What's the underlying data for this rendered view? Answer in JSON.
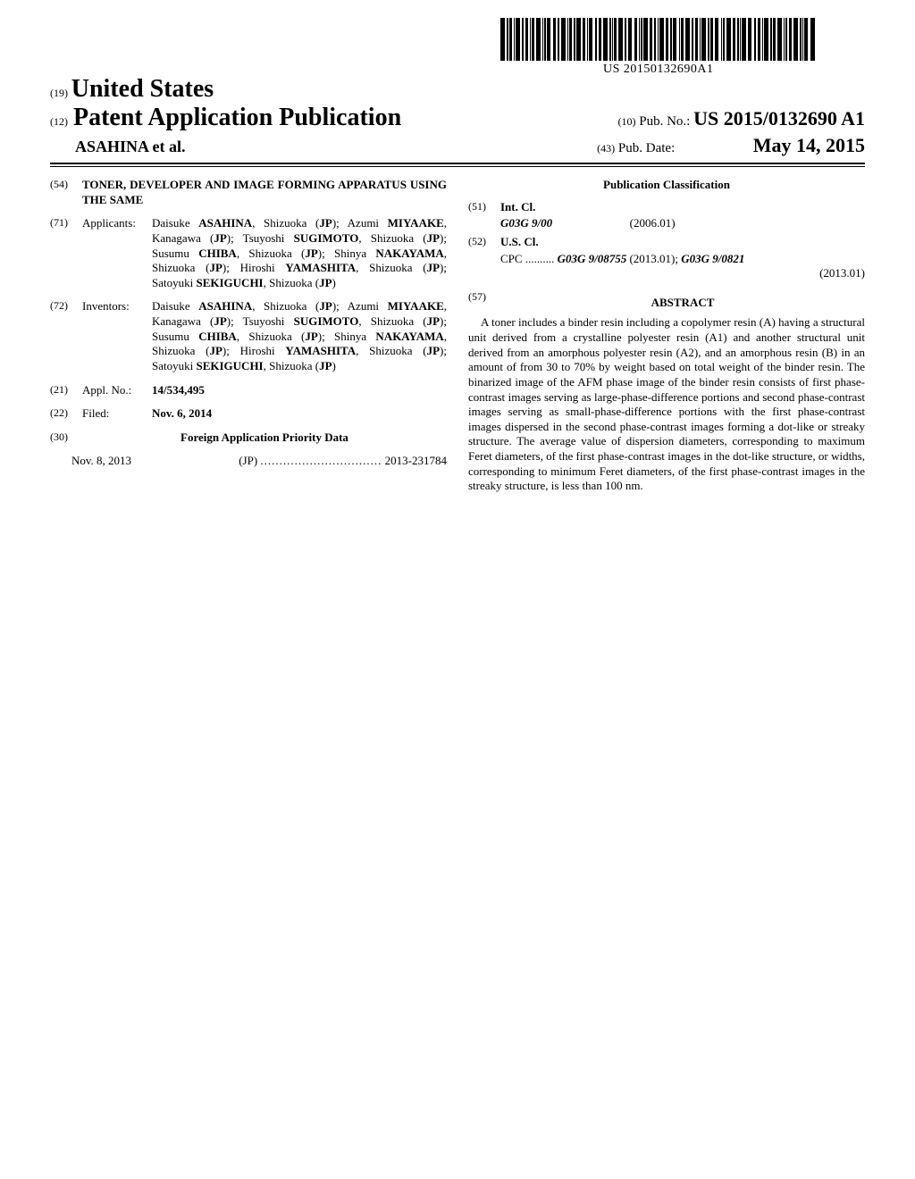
{
  "barcode_text": "US 20150132690A1",
  "header": {
    "country_tag": "(19)",
    "country": "United States",
    "pub_tag": "(12)",
    "pub_title": "Patent Application Publication",
    "pubno_tag": "(10)",
    "pubno_label": "Pub. No.:",
    "pubno_value": "US 2015/0132690 A1",
    "author": "ASAHINA et al.",
    "date_tag": "(43)",
    "date_label": "Pub. Date:",
    "date_value": "May 14, 2015"
  },
  "left": {
    "title_tag": "(54)",
    "title": "TONER, DEVELOPER AND IMAGE FORMING APPARATUS USING THE SAME",
    "applicants_tag": "(71)",
    "applicants_label": "Applicants:",
    "applicants": "Daisuke ASAHINA, Shizuoka (JP); Azumi MIYAAKE, Kanagawa (JP); Tsuyoshi SUGIMOTO, Shizuoka (JP); Susumu CHIBA, Shizuoka (JP); Shinya NAKAYAMA, Shizuoka (JP); Hiroshi YAMASHITA, Shizuoka (JP); Satoyuki SEKIGUCHI, Shizuoka (JP)",
    "inventors_tag": "(72)",
    "inventors_label": "Inventors:",
    "inventors": "Daisuke ASAHINA, Shizuoka (JP); Azumi MIYAAKE, Kanagawa (JP); Tsuyoshi SUGIMOTO, Shizuoka (JP); Susumu CHIBA, Shizuoka (JP); Shinya NAKAYAMA, Shizuoka (JP); Hiroshi YAMASHITA, Shizuoka (JP); Satoyuki SEKIGUCHI, Shizuoka (JP)",
    "applno_tag": "(21)",
    "applno_label": "Appl. No.:",
    "applno_value": "14/534,495",
    "filed_tag": "(22)",
    "filed_label": "Filed:",
    "filed_value": "Nov. 6, 2014",
    "priority_tag": "(30)",
    "priority_label": "Foreign Application Priority Data",
    "priority_date": "Nov. 8, 2013",
    "priority_country": "(JP)",
    "priority_dots": "................................",
    "priority_num": "2013-231784"
  },
  "right": {
    "class_head": "Publication Classification",
    "intcl_tag": "(51)",
    "intcl_label": "Int. Cl.",
    "intcl_code": "G03G 9/00",
    "intcl_date": "(2006.01)",
    "uscl_tag": "(52)",
    "uscl_label": "U.S. Cl.",
    "cpc_label": "CPC ..........",
    "cpc_1": "G03G 9/08755",
    "cpc_1_date": "(2013.01);",
    "cpc_2": "G03G 9/0821",
    "cpc_2_date": "(2013.01)",
    "abstract_tag": "(57)",
    "abstract_head": "ABSTRACT",
    "abstract": "A toner includes a binder resin including a copolymer resin (A) having a structural unit derived from a crystalline polyester resin (A1) and another structural unit derived from an amorphous polyester resin (A2), and an amorphous resin (B) in an amount of from 30 to 70% by weight based on total weight of the binder resin. The binarized image of the AFM phase image of the binder resin consists of first phase-contrast images serving as large-phase-difference portions and second phase-contrast images serving as small-phase-difference portions with the first phase-contrast images dispersed in the second phase-contrast images forming a dot-like or streaky structure. The average value of dispersion diameters, corresponding to maximum Feret diameters, of the first phase-contrast images in the dot-like structure, or widths, corresponding to minimum Feret diameters, of the first phase-contrast images in the streaky structure, is less than 100 nm."
  }
}
